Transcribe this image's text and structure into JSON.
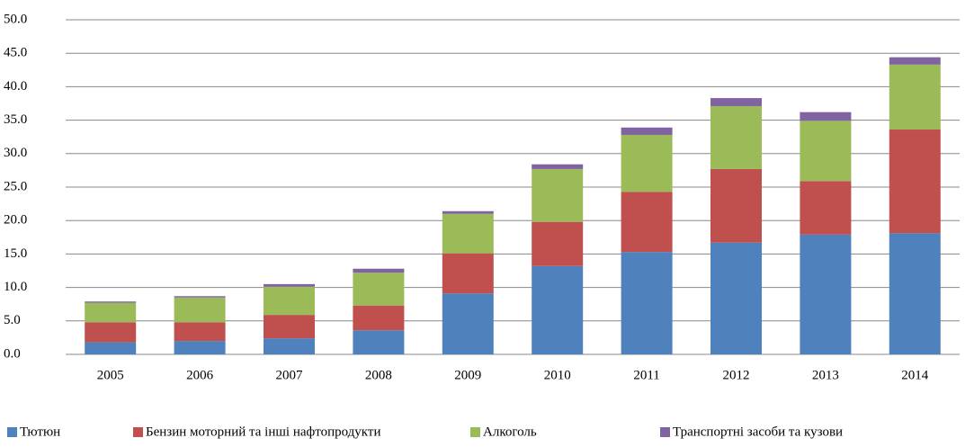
{
  "chart_data": {
    "type": "stacked_bar",
    "categories": [
      "2005",
      "2006",
      "2007",
      "2008",
      "2009",
      "2010",
      "2011",
      "2012",
      "2013",
      "2014"
    ],
    "series": [
      {
        "name": "Тютюн",
        "color": "#4f81bd",
        "values": [
          1.8,
          2.0,
          2.4,
          3.6,
          9.1,
          13.2,
          15.3,
          16.7,
          17.9,
          18.1
        ]
      },
      {
        "name": "Бензин моторний та інші нафтопродукти",
        "color": "#c0504d",
        "values": [
          3.0,
          2.8,
          3.5,
          3.7,
          6.0,
          6.6,
          9.0,
          11.0,
          8.0,
          15.5
        ]
      },
      {
        "name": "Алкоголь",
        "color": "#9bbb59",
        "values": [
          2.9,
          3.7,
          4.2,
          4.9,
          5.9,
          7.9,
          8.5,
          9.4,
          9.0,
          9.7
        ]
      },
      {
        "name": "Транспортні засоби та кузови",
        "color": "#8064a2",
        "values": [
          0.2,
          0.2,
          0.4,
          0.6,
          0.4,
          0.7,
          1.1,
          1.2,
          1.3,
          1.1
        ]
      }
    ],
    "ylim": [
      0,
      50
    ],
    "yticks": [
      {
        "value": 0,
        "label": "0.0"
      },
      {
        "value": 5,
        "label": "5.0"
      },
      {
        "value": 10,
        "label": "10.0"
      },
      {
        "value": 15,
        "label": "15.0"
      },
      {
        "value": 20,
        "label": "20.0"
      },
      {
        "value": 25,
        "label": "25.0"
      },
      {
        "value": 30,
        "label": "30.0"
      },
      {
        "value": 35,
        "label": "35.0"
      },
      {
        "value": 40,
        "label": "40.0"
      },
      {
        "value": 45,
        "label": "45.0"
      },
      {
        "value": 50,
        "label": "50.0"
      }
    ],
    "grid": true,
    "legend": "bottom"
  }
}
